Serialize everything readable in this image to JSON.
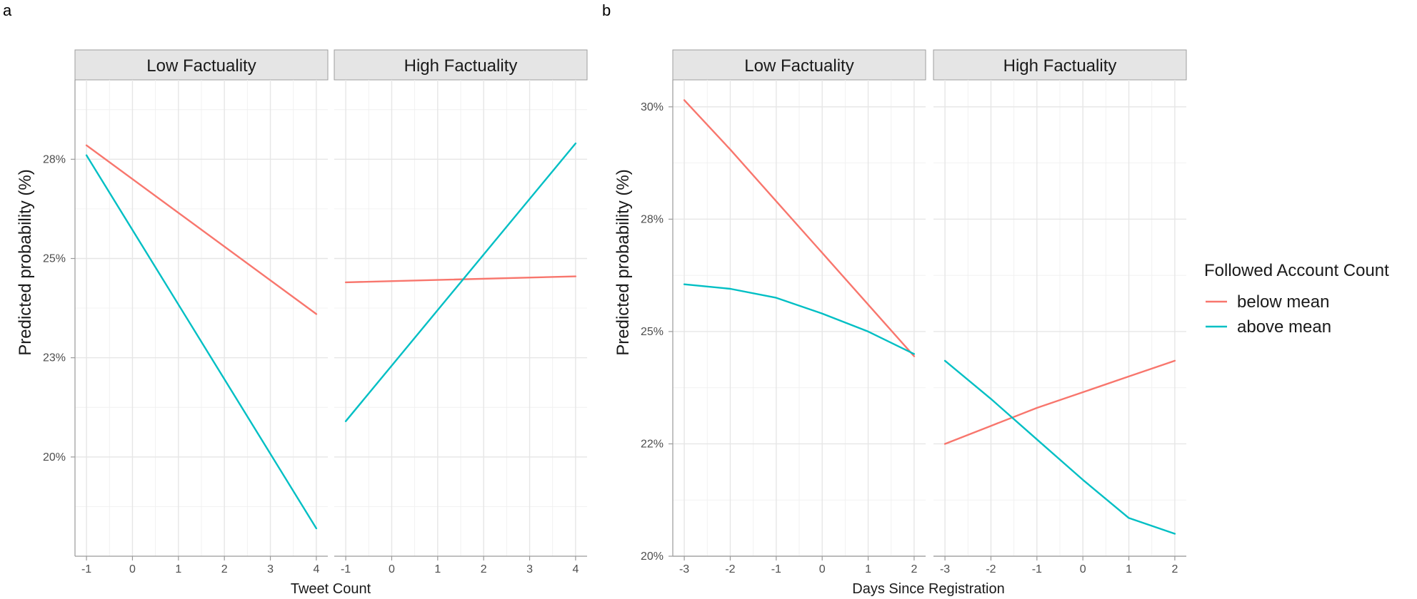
{
  "colors": {
    "below": "#F8766D",
    "above": "#00BFC4"
  },
  "legend": {
    "title": "Followed Account Count",
    "items": [
      {
        "key": "below",
        "label": "below mean"
      },
      {
        "key": "above",
        "label": "above mean"
      }
    ]
  },
  "chart_data": [
    {
      "type": "line",
      "panel_label": "a",
      "xlabel": "Tweet Count",
      "ylabel": "Predicted probability (%)",
      "xlim": [
        -1.25,
        4.25
      ],
      "ylim": [
        17.5,
        29.5
      ],
      "xticks": [
        -1,
        0,
        1,
        2,
        3,
        4
      ],
      "xtick_labels": [
        "-1",
        "0",
        "1",
        "2",
        "3",
        "4"
      ],
      "yticks": [
        20,
        22.5,
        25,
        27.5
      ],
      "ytick_labels": [
        "20%",
        "23%",
        "25%",
        "28%"
      ],
      "facets": [
        {
          "title": "Low Factuality",
          "series": [
            {
              "key": "below",
              "name": "below mean",
              "x": [
                -1,
                4
              ],
              "y": [
                27.85,
                23.6
              ]
            },
            {
              "key": "above",
              "name": "above mean",
              "x": [
                -1,
                4
              ],
              "y": [
                27.6,
                18.2
              ]
            }
          ]
        },
        {
          "title": "High Factuality",
          "series": [
            {
              "key": "below",
              "name": "below mean",
              "x": [
                -1,
                4
              ],
              "y": [
                24.4,
                24.55
              ]
            },
            {
              "key": "above",
              "name": "above mean",
              "x": [
                -1,
                4
              ],
              "y": [
                20.9,
                27.9
              ]
            }
          ]
        }
      ]
    },
    {
      "type": "line",
      "panel_label": "b",
      "xlabel": "Days Since Registration",
      "ylabel": "Predicted probability (%)",
      "xlim": [
        -3.25,
        2.25
      ],
      "ylim": [
        20,
        30.6
      ],
      "xticks": [
        -3,
        -2,
        -1,
        0,
        1,
        2
      ],
      "xtick_labels": [
        "-3",
        "-2",
        "-1",
        "0",
        "1",
        "2"
      ],
      "yticks": [
        20,
        22.5,
        25,
        27.5,
        30
      ],
      "ytick_labels": [
        "20%",
        "22%",
        "25%",
        "28%",
        "30%"
      ],
      "facets": [
        {
          "title": "Low Factuality",
          "series": [
            {
              "key": "below",
              "name": "below mean",
              "x": [
                -3,
                -2,
                -1,
                0,
                1,
                2
              ],
              "y": [
                30.15,
                29.05,
                27.9,
                26.75,
                25.6,
                24.45
              ]
            },
            {
              "key": "above",
              "name": "above mean",
              "x": [
                -3,
                -2,
                -1,
                0,
                1,
                2
              ],
              "y": [
                26.05,
                25.95,
                25.75,
                25.4,
                25.0,
                24.5
              ]
            }
          ]
        },
        {
          "title": "High Factuality",
          "series": [
            {
              "key": "below",
              "name": "below mean",
              "x": [
                -3,
                -2,
                -1,
                0,
                1,
                2
              ],
              "y": [
                22.5,
                22.9,
                23.3,
                23.65,
                24.0,
                24.35
              ]
            },
            {
              "key": "above",
              "name": "above mean",
              "x": [
                -3,
                -2,
                -1,
                0,
                1,
                2
              ],
              "y": [
                24.35,
                23.5,
                22.6,
                21.7,
                20.85,
                20.5
              ]
            }
          ]
        }
      ]
    }
  ]
}
